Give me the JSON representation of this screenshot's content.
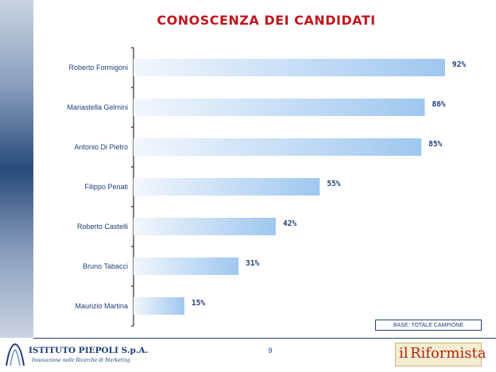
{
  "title": "CONOSCENZA DEI CANDIDATI",
  "base_note": "BASE: TOTALE CAMPIONE",
  "page_number": "9",
  "logo_left": {
    "name": "ISTITUTO PIEPOLI S.p.A.",
    "tagline": "Innovazione nelle Ricerche di Marketing"
  },
  "logo_right": {
    "prefix": "il",
    "name": "Riformista"
  },
  "colors": {
    "title": "#c0161d",
    "label": "#1f3f7a",
    "bar_start": "#f2f7fd",
    "bar_end": "#9fc7ef",
    "band": "#2a4a7c"
  },
  "chart_data": {
    "type": "bar",
    "orientation": "horizontal",
    "title": "CONOSCENZA DEI CANDIDATI",
    "categories": [
      "Roberto Formigoni",
      "Mariastella Gelmini",
      "Antonio Di Pietro",
      "Filippo Penati",
      "Roberto Castelli",
      "Bruno Tabacci",
      "Maurizio Martina"
    ],
    "values": [
      92,
      86,
      85,
      55,
      42,
      31,
      15
    ],
    "value_labels": [
      "92%",
      "86%",
      "85%",
      "55%",
      "42%",
      "31%",
      "15%"
    ],
    "xlim": [
      0,
      100
    ],
    "grid": false,
    "legend": "none"
  }
}
